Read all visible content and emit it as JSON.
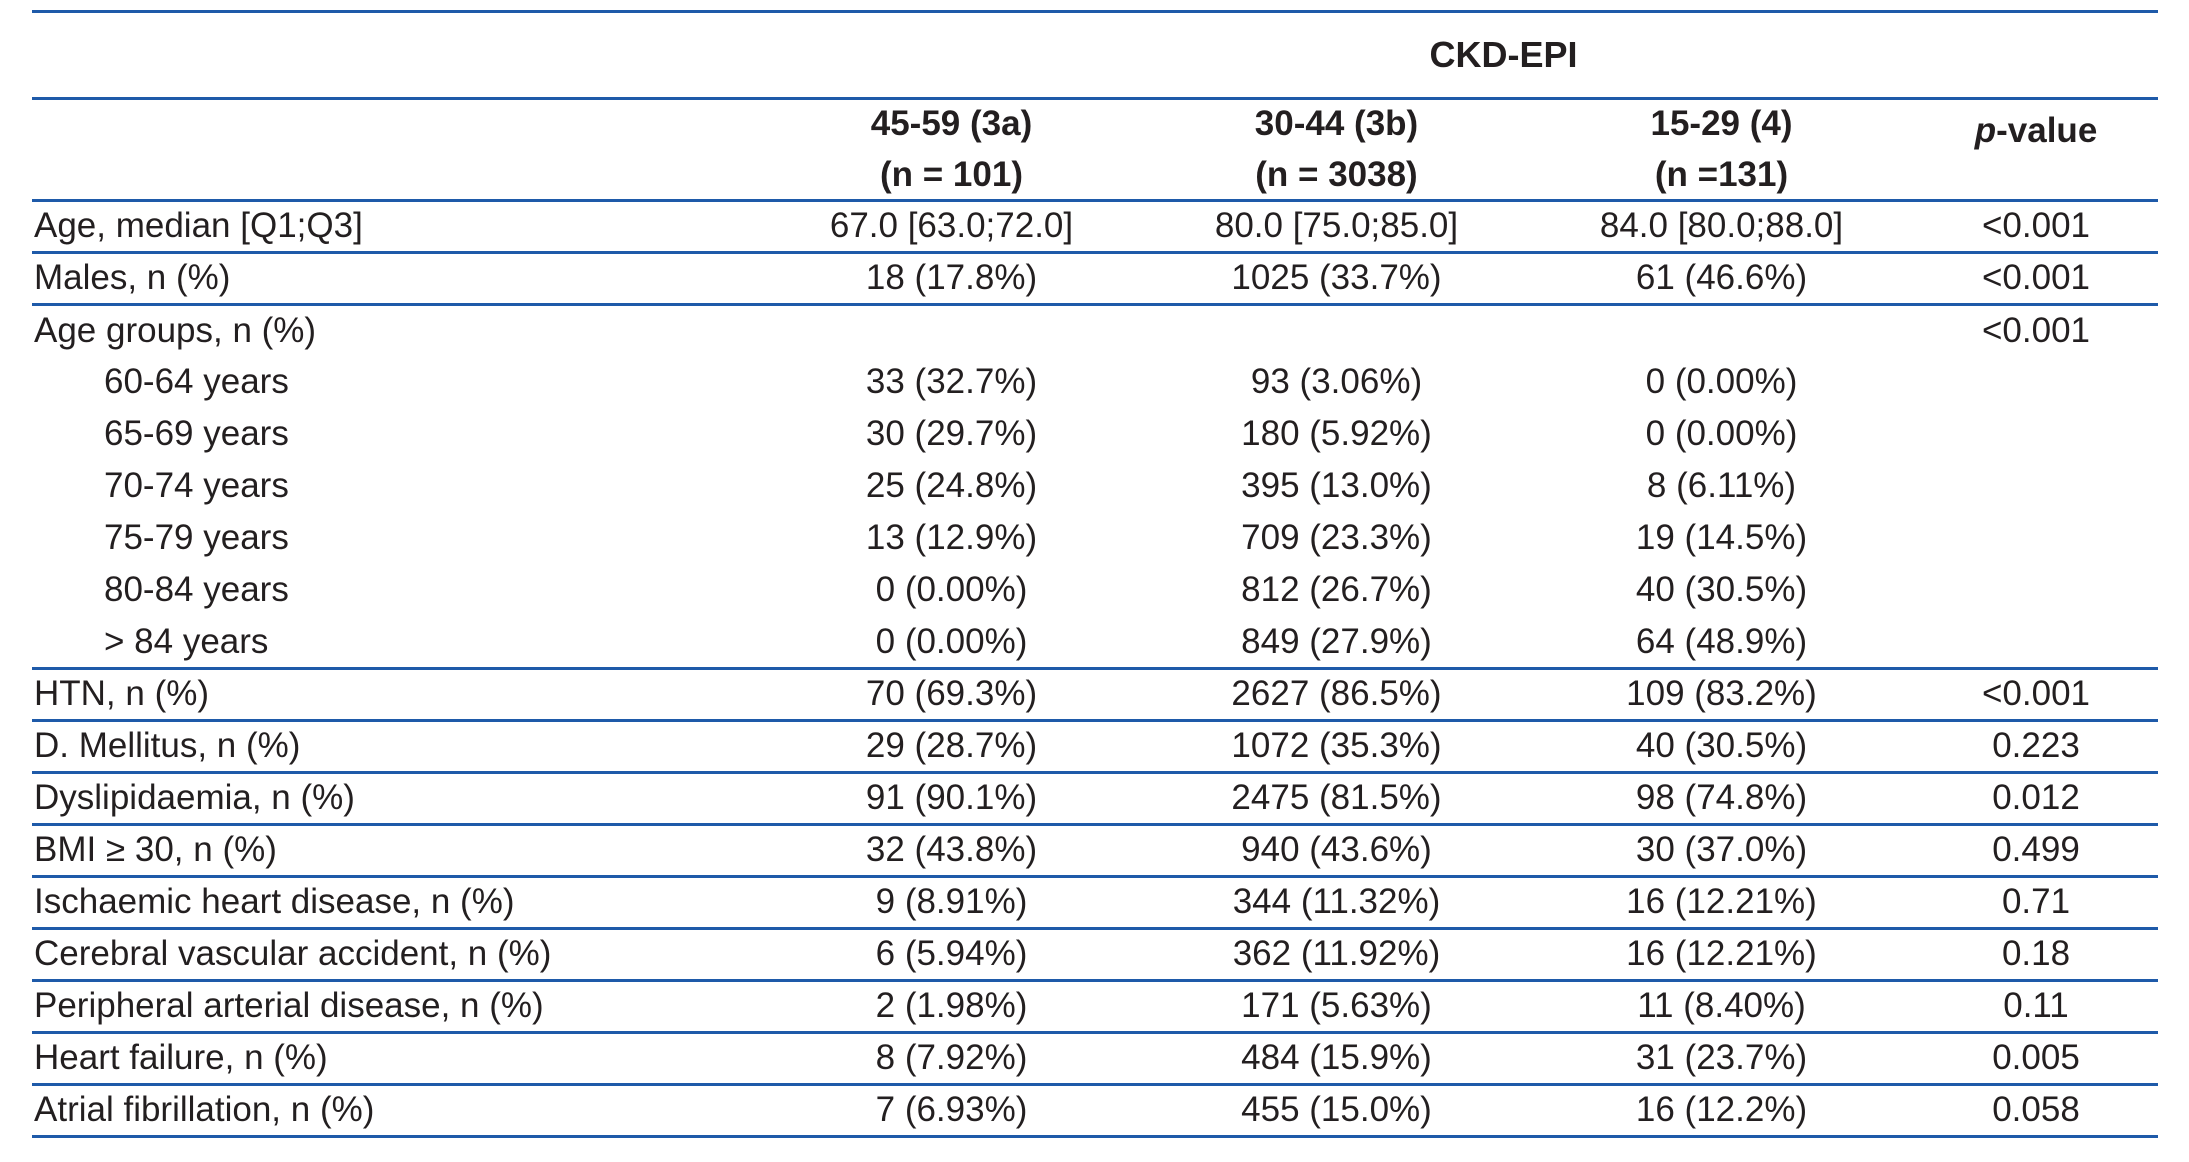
{
  "colors": {
    "rule_blue": "#1e5aa9",
    "text": "#231f20"
  },
  "table": {
    "group_header": "CKD-EPI",
    "column_headers": [
      {
        "range": "45-59 (3a)",
        "n": "(n = 101)"
      },
      {
        "range": "30-44 (3b)",
        "n": "(n = 3038)"
      },
      {
        "range": "15-29 (4)",
        "n": "(n =131)"
      }
    ],
    "p_value_header": {
      "italic_part": "p",
      "rest_part": "-value"
    },
    "rows": [
      {
        "label": "Age, median [Q1;Q3]",
        "c1": "67.0 [63.0;72.0]",
        "c2": "80.0 [75.0;85.0]",
        "c3": "84.0 [80.0;88.0]",
        "p": "<0.001"
      },
      {
        "label": "Males, n (%)",
        "c1": "18 (17.8%)",
        "c2": "1025 (33.7%)",
        "c3": "61 (46.6%)",
        "p": "<0.001"
      },
      {
        "label": "Age groups, n (%)",
        "c1": "",
        "c2": "",
        "c3": "",
        "p": "<0.001"
      },
      {
        "label": "60-64 years",
        "c1": "33 (32.7%)",
        "c2": "93 (3.06%)",
        "c3": "0 (0.00%)",
        "p": ""
      },
      {
        "label": "65-69 years",
        "c1": "30 (29.7%)",
        "c2": "180 (5.92%)",
        "c3": "0 (0.00%)",
        "p": ""
      },
      {
        "label": "70-74 years",
        "c1": "25 (24.8%)",
        "c2": "395 (13.0%)",
        "c3": "8 (6.11%)",
        "p": ""
      },
      {
        "label": "75-79 years",
        "c1": "13 (12.9%)",
        "c2": "709 (23.3%)",
        "c3": "19 (14.5%)",
        "p": ""
      },
      {
        "label": "80-84 years",
        "c1": "0 (0.00%)",
        "c2": "812 (26.7%)",
        "c3": "40 (30.5%)",
        "p": ""
      },
      {
        "label": "> 84 years",
        "c1": "0 (0.00%)",
        "c2": "849 (27.9%)",
        "c3": "64 (48.9%)",
        "p": ""
      },
      {
        "label": "HTN, n (%)",
        "c1": "70 (69.3%)",
        "c2": "2627 (86.5%)",
        "c3": "109 (83.2%)",
        "p": "<0.001"
      },
      {
        "label": "D. Mellitus, n (%)",
        "c1": "29 (28.7%)",
        "c2": "1072 (35.3%)",
        "c3": "40 (30.5%)",
        "p": "0.223"
      },
      {
        "label": "Dyslipidaemia, n (%)",
        "c1": "91 (90.1%)",
        "c2": "2475 (81.5%)",
        "c3": "98 (74.8%)",
        "p": "0.012"
      },
      {
        "label": "BMI ≥ 30, n (%)",
        "c1": "32 (43.8%)",
        "c2": "940 (43.6%)",
        "c3": "30 (37.0%)",
        "p": "0.499"
      },
      {
        "label": "Ischaemic heart disease, n (%)",
        "c1": "9 (8.91%)",
        "c2": "344 (11.32%)",
        "c3": "16 (12.21%)",
        "p": "0.71"
      },
      {
        "label": "Cerebral vascular accident, n (%)",
        "c1": "6 (5.94%)",
        "c2": "362 (11.92%)",
        "c3": "16 (12.21%)",
        "p": "0.18"
      },
      {
        "label": "Peripheral arterial disease, n (%)",
        "c1": "2 (1.98%)",
        "c2": "171 (5.63%)",
        "c3": "11 (8.40%)",
        "p": "0.11"
      },
      {
        "label": "Heart failure, n (%)",
        "c1": "8 (7.92%)",
        "c2": "484 (15.9%)",
        "c3": "31 (23.7%)",
        "p": "0.005"
      },
      {
        "label": "Atrial fibrillation, n (%)",
        "c1": "7 (6.93%)",
        "c2": "455 (15.0%)",
        "c3": "16 (12.2%)",
        "p": "0.058"
      }
    ]
  }
}
